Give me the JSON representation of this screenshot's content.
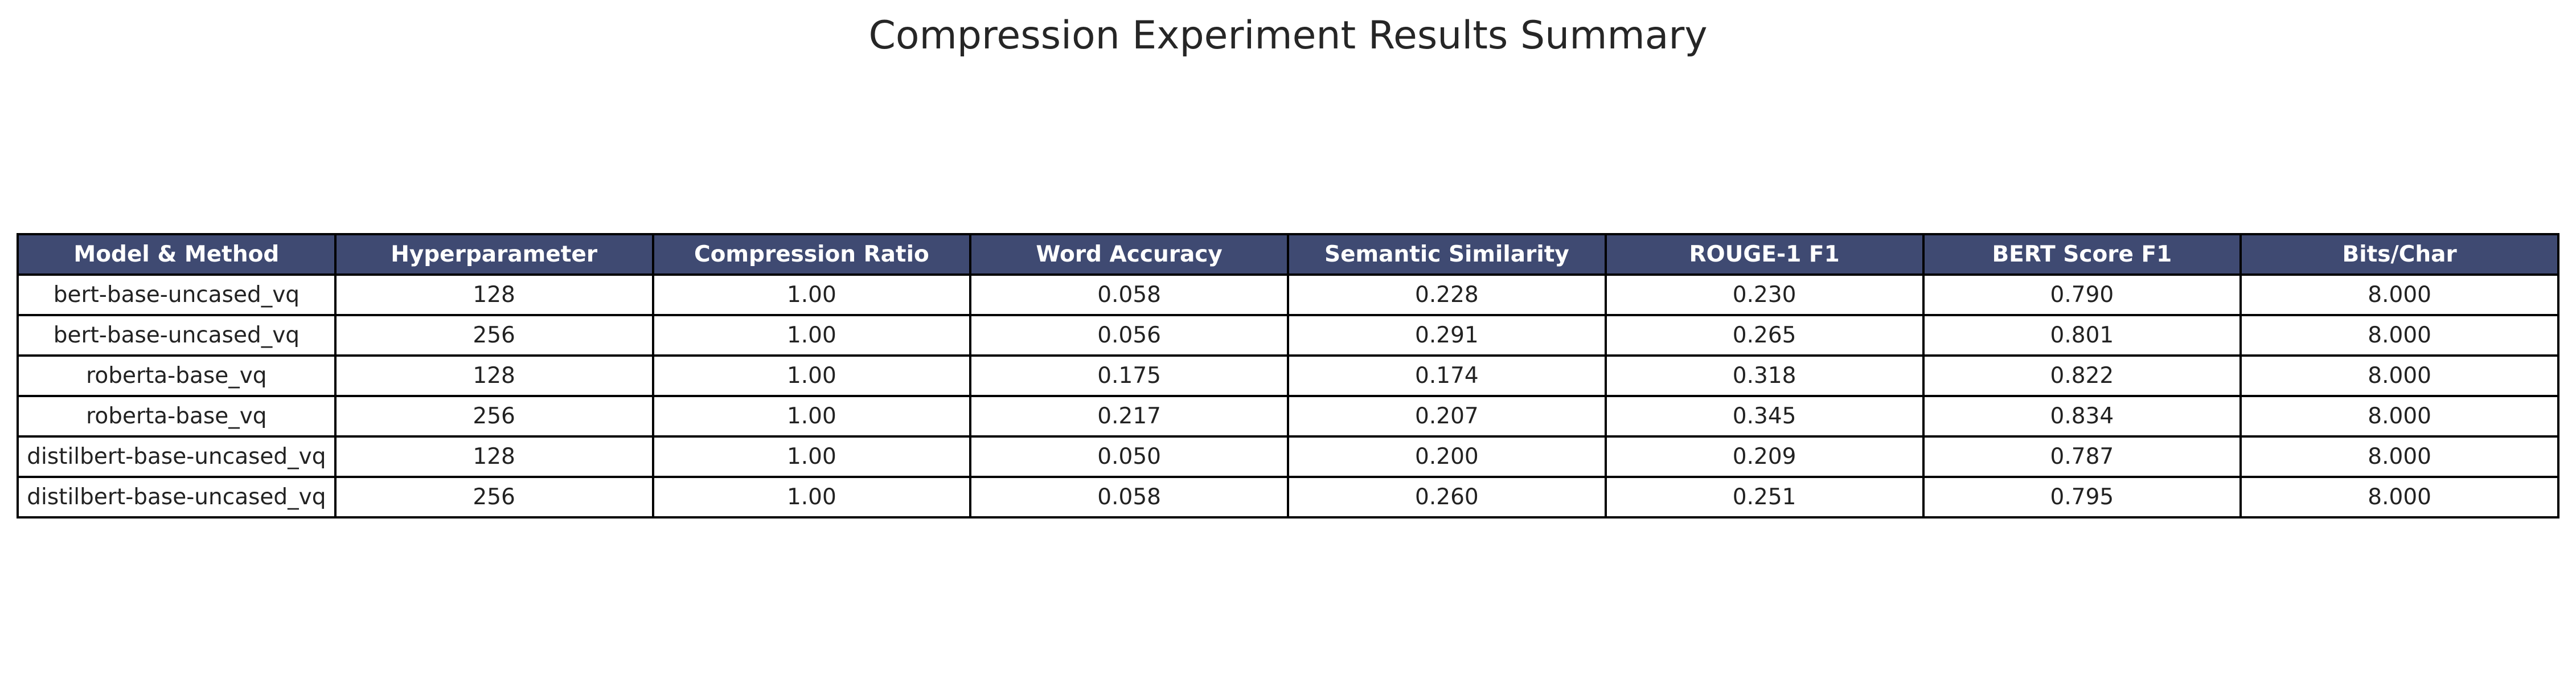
{
  "chart_data": {
    "type": "table",
    "title": "Compression Experiment Results Summary",
    "header_bg": "#3f4a72",
    "header_fg": "#ffffff",
    "columns": [
      "Model & Method",
      "Hyperparameter",
      "Compression Ratio",
      "Word Accuracy",
      "Semantic Similarity",
      "ROUGE-1 F1",
      "BERT Score F1",
      "Bits/Char"
    ],
    "rows": [
      [
        "bert-base-uncased_vq",
        "128",
        "1.00",
        "0.058",
        "0.228",
        "0.230",
        "0.790",
        "8.000"
      ],
      [
        "bert-base-uncased_vq",
        "256",
        "1.00",
        "0.056",
        "0.291",
        "0.265",
        "0.801",
        "8.000"
      ],
      [
        "roberta-base_vq",
        "128",
        "1.00",
        "0.175",
        "0.174",
        "0.318",
        "0.822",
        "8.000"
      ],
      [
        "roberta-base_vq",
        "256",
        "1.00",
        "0.217",
        "0.207",
        "0.345",
        "0.834",
        "8.000"
      ],
      [
        "distilbert-base-uncased_vq",
        "128",
        "1.00",
        "0.050",
        "0.200",
        "0.209",
        "0.787",
        "8.000"
      ],
      [
        "distilbert-base-uncased_vq",
        "256",
        "1.00",
        "0.058",
        "0.260",
        "0.251",
        "0.795",
        "8.000"
      ]
    ]
  }
}
